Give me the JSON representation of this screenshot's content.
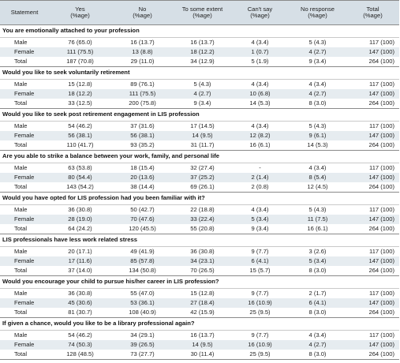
{
  "table": {
    "headers": [
      {
        "line1": "Statement",
        "line2": ""
      },
      {
        "line1": "Yes",
        "line2": "(%age)"
      },
      {
        "line1": "No",
        "line2": "(%age)"
      },
      {
        "line1": "To some extent",
        "line2": "(%age)"
      },
      {
        "line1": "Can't say",
        "line2": "(%age)"
      },
      {
        "line1": "No response",
        "line2": "(%age)"
      },
      {
        "line1": "Total",
        "line2": "(%age)"
      }
    ],
    "sections": [
      {
        "title": "You are emotionally attached to your profession",
        "rows": [
          {
            "group": "Male",
            "values": [
              "76 (65.0)",
              "16 (13.7)",
              "16 (13.7)",
              "4 (3.4)",
              "5 (4.3)",
              "117 (100)"
            ]
          },
          {
            "group": "Female",
            "values": [
              "111 (75.5)",
              "13 (8.8)",
              "18 (12.2)",
              "1 (0.7)",
              "4 (2.7)",
              "147 (100)"
            ]
          },
          {
            "group": "Total",
            "values": [
              "187 (70.8)",
              "29 (11.0)",
              "34 (12.9)",
              "5 (1.9)",
              "9 (3.4)",
              "264 (100)"
            ]
          }
        ]
      },
      {
        "title": "Would you like to seek voluntarily retirement",
        "rows": [
          {
            "group": "Male",
            "values": [
              "15 (12.8)",
              "89 (76.1)",
              "5 (4.3)",
              "4 (3.4)",
              "4 (3.4)",
              "117 (100)"
            ]
          },
          {
            "group": "Female",
            "values": [
              "18 (12.2)",
              "111 (75.5)",
              "4 (2.7)",
              "10 (6.8)",
              "4 (2.7)",
              "147 (100)"
            ]
          },
          {
            "group": "Total",
            "values": [
              "33 (12.5)",
              "200 (75.8)",
              "9 (3.4)",
              "14 (5.3)",
              "8 (3.0)",
              "264 (100)"
            ]
          }
        ]
      },
      {
        "title": "Would you like to seek post retirement engagement in LIS profession",
        "rows": [
          {
            "group": "Male",
            "values": [
              "54 (46.2)",
              "37 (31.6)",
              "17 (14.5)",
              "4 (3.4)",
              "5 (4.3)",
              "117 (100)"
            ]
          },
          {
            "group": "Female",
            "values": [
              "56 (38.1)",
              "56 (38.1)",
              "14 (9.5)",
              "12 (8.2)",
              "9 (6.1)",
              "147 (100)"
            ]
          },
          {
            "group": "Total",
            "values": [
              "110 (41.7)",
              "93 (35.2)",
              "31 (11.7)",
              "16 (6.1)",
              "14 (5.3)",
              "264 (100)"
            ]
          }
        ]
      },
      {
        "title": "Are you able to strike a balance between your work, family, and personal life",
        "rows": [
          {
            "group": "Male",
            "values": [
              "63 (53.8)",
              "18 (15.4)",
              "32 (27.4)",
              "-",
              "4 (3.4)",
              "117 (100)"
            ]
          },
          {
            "group": "Female",
            "values": [
              "80 (54.4)",
              "20 (13.6)",
              "37 (25.2)",
              "2 (1.4)",
              "8 (5.4)",
              "147 (100)"
            ]
          },
          {
            "group": "Total",
            "values": [
              "143 (54.2)",
              "38 (14.4)",
              "69 (26.1)",
              "2 (0.8)",
              "12 (4.5)",
              "264 (100)"
            ]
          }
        ]
      },
      {
        "title": "Would you have opted for LIS profession had you been familiar with it?",
        "rows": [
          {
            "group": "Male",
            "values": [
              "36 (30.8)",
              "50 (42.7)",
              "22 (18.8)",
              "4 (3.4)",
              "5 (4.3)",
              "117 (100)"
            ]
          },
          {
            "group": "Female",
            "values": [
              "28 (19.0)",
              "70 (47.6)",
              "33 (22.4)",
              "5 (3.4)",
              "11 (7.5)",
              "147 (100)"
            ]
          },
          {
            "group": "Total",
            "values": [
              "64 (24.2)",
              "120 (45.5)",
              "55 (20.8)",
              "9 (3.4)",
              "16 (6.1)",
              "264 (100)"
            ]
          }
        ]
      },
      {
        "title": "LIS professionals have less work related stress",
        "rows": [
          {
            "group": "Male",
            "values": [
              "20 (17.1)",
              "49 (41.9)",
              "36 (30.8)",
              "9 (7.7)",
              "3 (2.6)",
              "117 (100)"
            ]
          },
          {
            "group": "Female",
            "values": [
              "17 (11.6)",
              "85 (57.8)",
              "34 (23.1)",
              "6 (4.1)",
              "5 (3.4)",
              "147 (100)"
            ]
          },
          {
            "group": "Total",
            "values": [
              "37 (14.0)",
              "134 (50.8)",
              "70 (26.5)",
              "15 (5.7)",
              "8 (3.0)",
              "264 (100)"
            ]
          }
        ]
      },
      {
        "title": "Would you encourage your child to pursue his/her career in LIS profession?",
        "rows": [
          {
            "group": "Male",
            "values": [
              "36 (30.8)",
              "55 (47.0)",
              "15 (12.8)",
              "9 (7.7)",
              "2 (1.7)",
              "117 (100)"
            ]
          },
          {
            "group": "Female",
            "values": [
              "45 (30.6)",
              "53 (36.1)",
              "27 (18.4)",
              "16 (10.9)",
              "6 (4.1)",
              "147 (100)"
            ]
          },
          {
            "group": "Total",
            "values": [
              "81 (30.7)",
              "108 (40.9)",
              "42 (15.9)",
              "25 (9.5)",
              "8 (3.0)",
              "264 (100)"
            ]
          }
        ]
      },
      {
        "title": "If given a chance, would you like to be a library professional again?",
        "rows": [
          {
            "group": "Male",
            "values": [
              "54 (46.2)",
              "34 (29.1)",
              "16 (13.7)",
              "9 (7.7)",
              "4 (3.4)",
              "117 (100)"
            ]
          },
          {
            "group": "Female",
            "values": [
              "74 (50.3)",
              "39 (26.5)",
              "14 (9.5)",
              "16 (10.9)",
              "4 (2.7)",
              "147 (100)"
            ]
          },
          {
            "group": "Total",
            "values": [
              "128 (48.5)",
              "73 (27.7)",
              "30 (11.4)",
              "25 (9.5)",
              "8 (3.0)",
              "264 (100)"
            ]
          }
        ]
      }
    ]
  },
  "colors": {
    "header_bg": "#d6dfe6",
    "shade_row_bg": "#e6ecf0",
    "rule": "#8a8a8a"
  }
}
